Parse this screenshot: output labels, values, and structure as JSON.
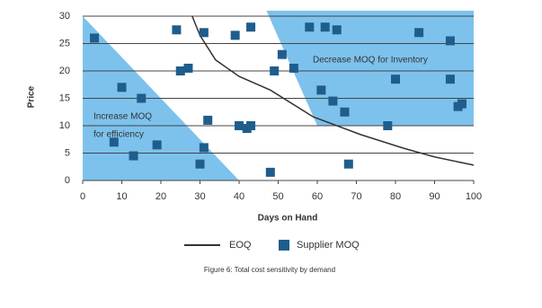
{
  "chart_data": {
    "type": "scatter",
    "x_label": "Days on Hand",
    "y_label": "Price",
    "caption": "Figure 6: Total cost sensitivity by demand",
    "xlim": [
      0,
      100
    ],
    "xticks": [
      0,
      10,
      20,
      30,
      40,
      50,
      60,
      70,
      80,
      90,
      100
    ],
    "ylim": [
      0,
      30
    ],
    "yticks": [
      0,
      5,
      10,
      15,
      20,
      25,
      30
    ],
    "grid": true,
    "regions": [
      {
        "lines": [
          "Increase MOQ",
          "for efficiency"
        ],
        "color": "#7dc2ec",
        "x": [
          0,
          40,
          0
        ],
        "y": [
          30,
          0,
          0
        ]
      },
      {
        "lines": [
          "Decrease MOQ for Inventory"
        ],
        "color": "#7dc2ec",
        "x": [
          47,
          100,
          100,
          60
        ],
        "y": [
          31,
          31,
          10,
          10
        ]
      }
    ],
    "series": [
      {
        "name": "EOQ",
        "type": "line",
        "color": "#333333",
        "x": [
          28,
          30,
          34,
          40,
          48,
          59,
          71,
          82,
          90,
          100
        ],
        "values": [
          30,
          26.5,
          22,
          19,
          16.5,
          11.6,
          8.4,
          5.9,
          4.3,
          2.8
        ]
      },
      {
        "name": "Supplier MOQ",
        "type": "scatter",
        "color": "#1f5d8c",
        "x": [
          3,
          10,
          8,
          13,
          15,
          19,
          24,
          25,
          27,
          31,
          30,
          31,
          32,
          39,
          40,
          42,
          43,
          43,
          48,
          49,
          51,
          54,
          58,
          61,
          62,
          64,
          65,
          67,
          68,
          78,
          80,
          86,
          94,
          94,
          96,
          97
        ],
        "values": [
          26,
          17,
          7,
          4.5,
          15,
          6.5,
          27.5,
          20,
          20.5,
          6,
          3,
          27,
          11,
          26.5,
          10,
          9.5,
          10,
          28,
          1.5,
          20,
          23,
          20.5,
          28,
          16.5,
          28,
          14.5,
          27.5,
          12.5,
          3,
          10,
          18.5,
          27,
          25.5,
          18.5,
          13.5,
          14
        ]
      }
    ]
  }
}
